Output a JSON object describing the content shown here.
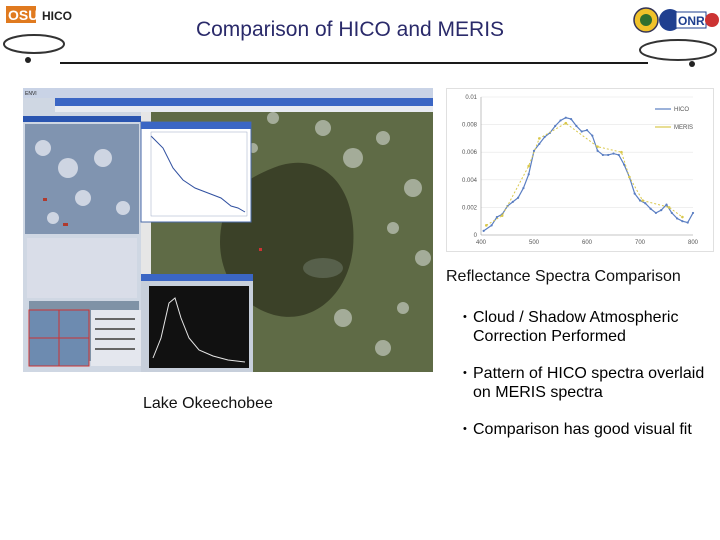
{
  "header": {
    "title": "Comparison of HICO and MERIS",
    "logo_left": "OSU HICO",
    "logo_right": "ONR"
  },
  "composite": {
    "desc_icons": [
      "window-icon",
      "close-icon"
    ]
  },
  "chart_data": {
    "type": "line",
    "title": "",
    "xlabel": "",
    "ylabel": "",
    "xlim": [
      400,
      800
    ],
    "ylim": [
      0,
      0.01
    ],
    "x_ticks": [
      "400",
      "500",
      "600",
      "700",
      "800"
    ],
    "y_ticks": [
      "0",
      "0.002",
      "0.004",
      "0.006",
      "0.008",
      "0.01"
    ],
    "legend_position": "top-right",
    "series": [
      {
        "name": "HICO",
        "color": "#5a7ec2",
        "x": [
          405,
          420,
          430,
          440,
          450,
          460,
          470,
          480,
          490,
          500,
          510,
          520,
          530,
          540,
          550,
          560,
          570,
          580,
          590,
          600,
          610,
          620,
          630,
          640,
          650,
          660,
          670,
          680,
          690,
          700,
          710,
          720,
          730,
          740,
          750,
          760,
          770,
          780,
          790,
          800
        ],
        "y": [
          0.0003,
          0.0007,
          0.0013,
          0.0015,
          0.0021,
          0.0024,
          0.0027,
          0.0034,
          0.0044,
          0.0061,
          0.0066,
          0.0071,
          0.0074,
          0.0079,
          0.0083,
          0.0085,
          0.0084,
          0.0079,
          0.0075,
          0.0076,
          0.0072,
          0.0061,
          0.0058,
          0.0058,
          0.0059,
          0.0058,
          0.0051,
          0.0042,
          0.003,
          0.0025,
          0.0023,
          0.0019,
          0.0016,
          0.0018,
          0.0022,
          0.0016,
          0.0012,
          0.001,
          0.0009,
          0.0016
        ]
      },
      {
        "name": "MERIS",
        "color": "#d9c84c",
        "x": [
          410,
          440,
          490,
          510,
          560,
          620,
          665,
          680,
          705,
          755,
          780
        ],
        "y": [
          0.0007,
          0.0014,
          0.005,
          0.007,
          0.0081,
          0.0064,
          0.006,
          0.0042,
          0.0025,
          0.002,
          0.0013
        ]
      }
    ]
  },
  "captions": {
    "spectra": "Reflectance Spectra Comparison",
    "lake": "Lake Okeechobee"
  },
  "bullets": [
    "Cloud / Shadow Atmospheric Correction Performed",
    "Pattern of HICO spectra overlaid on MERIS spectra",
    "Comparison has good visual fit"
  ]
}
